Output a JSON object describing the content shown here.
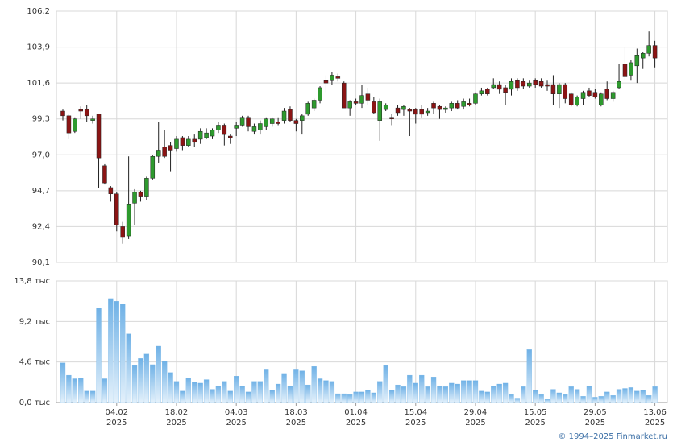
{
  "chart_data": {
    "type": "candlestick",
    "categories": [
      null,
      null,
      null,
      null,
      null,
      null,
      null,
      null,
      null,
      [
        "04.02",
        "2025"
      ],
      null,
      null,
      null,
      null,
      null,
      null,
      null,
      null,
      null,
      [
        "18.02",
        "2025"
      ],
      null,
      null,
      null,
      null,
      null,
      null,
      null,
      null,
      null,
      [
        "04.03",
        "2025"
      ],
      null,
      null,
      null,
      null,
      null,
      null,
      null,
      null,
      null,
      [
        "18.03",
        "2025"
      ],
      null,
      null,
      null,
      null,
      null,
      null,
      null,
      null,
      null,
      [
        "01.04",
        "2025"
      ],
      null,
      null,
      null,
      null,
      null,
      null,
      null,
      null,
      null,
      [
        "15.04",
        "2025"
      ],
      null,
      null,
      null,
      null,
      null,
      null,
      null,
      null,
      null,
      [
        "29.04",
        "2025"
      ],
      null,
      null,
      null,
      null,
      null,
      null,
      null,
      null,
      null,
      [
        "15.05",
        "2025"
      ],
      null,
      null,
      null,
      null,
      null,
      null,
      null,
      null,
      null,
      [
        "29.05",
        "2025"
      ],
      null,
      null,
      null,
      null,
      null,
      null,
      null,
      null,
      null,
      [
        "13.06",
        "2025"
      ]
    ],
    "open": [
      99.8,
      99.5,
      98.5,
      99.9,
      99.9,
      99.2,
      99.6,
      96.3,
      94.9,
      94.5,
      92.4,
      91.8,
      93.9,
      94.6,
      94.3,
      95.5,
      96.9,
      97.5,
      97.6,
      97.4,
      98.1,
      97.6,
      98.0,
      98.0,
      98.1,
      98.2,
      98.6,
      98.9,
      98.2,
      98.7,
      98.9,
      99.4,
      98.5,
      98.6,
      98.8,
      99.0,
      99.1,
      99.2,
      99.9,
      99.2,
      99.2,
      99.6,
      100.0,
      100.5,
      101.8,
      101.8,
      102.0,
      101.6,
      100.0,
      100.4,
      100.3,
      100.9,
      100.4,
      99.2,
      99.9,
      99.4,
      100.0,
      99.9,
      99.9,
      99.9,
      99.9,
      99.7,
      100.3,
      100.1,
      99.9,
      100.0,
      100.3,
      100.1,
      100.3,
      100.3,
      100.9,
      101.2,
      101.3,
      101.5,
      101.3,
      101.2,
      101.8,
      101.7,
      101.4,
      101.8,
      101.7,
      101.5,
      101.5,
      100.9,
      101.5,
      100.9,
      100.2,
      100.6,
      101.1,
      101.0,
      100.2,
      101.2,
      100.6,
      101.3,
      102.8,
      102.1,
      102.7,
      103.2,
      103.5,
      104.0
    ],
    "high": [
      99.9,
      99.6,
      99.4,
      100.1,
      100.2,
      99.5,
      99.6,
      96.4,
      95.0,
      94.6,
      92.7,
      96.9,
      94.8,
      94.7,
      95.6,
      97.0,
      99.1,
      98.6,
      97.8,
      98.2,
      98.2,
      98.2,
      98.3,
      98.7,
      98.7,
      98.7,
      99.1,
      99.0,
      98.3,
      99.1,
      99.5,
      99.5,
      99.0,
      99.2,
      99.4,
      99.4,
      99.4,
      100.0,
      100.1,
      99.3,
      99.6,
      100.4,
      100.6,
      101.4,
      102.1,
      102.3,
      102.2,
      101.7,
      100.5,
      100.6,
      101.5,
      101.3,
      100.7,
      100.6,
      100.3,
      99.6,
      100.2,
      100.2,
      100.0,
      100.0,
      100.2,
      100.0,
      100.4,
      100.2,
      100.1,
      100.4,
      100.5,
      100.6,
      100.6,
      101.0,
      101.3,
      101.3,
      101.9,
      101.7,
      101.5,
      101.9,
      101.9,
      101.9,
      101.8,
      101.9,
      101.9,
      101.8,
      102.1,
      101.6,
      101.6,
      101.0,
      100.8,
      101.1,
      101.3,
      101.2,
      101.0,
      101.7,
      101.1,
      102.8,
      103.9,
      103.1,
      103.8,
      103.6,
      104.9,
      104.3
    ],
    "low": [
      99.2,
      98.0,
      98.4,
      99.3,
      99.1,
      99.0,
      94.9,
      95.1,
      94.0,
      92.1,
      91.3,
      91.6,
      92.5,
      94.0,
      94.1,
      95.4,
      96.5,
      96.8,
      95.9,
      97.2,
      97.3,
      97.5,
      97.5,
      97.7,
      98.0,
      98.0,
      98.4,
      97.6,
      97.7,
      98.2,
      98.8,
      98.5,
      98.3,
      98.3,
      98.6,
      98.8,
      98.9,
      99.0,
      99.1,
      98.5,
      98.3,
      99.5,
      99.8,
      100.3,
      101.0,
      101.5,
      101.7,
      100.0,
      99.5,
      100.2,
      100.0,
      100.2,
      99.6,
      97.9,
      99.8,
      98.9,
      99.5,
      99.5,
      98.2,
      99.0,
      99.4,
      99.5,
      99.6,
      99.3,
      99.7,
      99.8,
      99.9,
      99.9,
      100.1,
      100.2,
      100.8,
      100.8,
      101.2,
      100.9,
      100.2,
      100.8,
      101.1,
      101.2,
      101.3,
      101.3,
      101.3,
      101.1,
      100.2,
      100.0,
      100.3,
      100.1,
      100.1,
      100.2,
      100.7,
      100.6,
      100.1,
      100.5,
      100.4,
      101.2,
      101.8,
      101.8,
      101.6,
      102.5,
      103.3,
      102.6
    ],
    "close": [
      99.5,
      98.4,
      99.3,
      99.8,
      99.5,
      99.3,
      96.8,
      95.2,
      94.5,
      92.5,
      91.7,
      93.8,
      94.6,
      94.3,
      95.5,
      96.9,
      97.3,
      96.9,
      97.3,
      98.0,
      97.6,
      98.0,
      97.8,
      98.5,
      98.4,
      98.6,
      98.9,
      98.3,
      98.1,
      98.9,
      99.4,
      98.8,
      98.8,
      99.0,
      99.3,
      99.3,
      99.0,
      99.8,
      99.2,
      99.0,
      99.5,
      100.3,
      100.5,
      101.3,
      101.6,
      102.1,
      101.9,
      100.0,
      100.4,
      100.3,
      100.8,
      100.5,
      99.7,
      100.4,
      100.2,
      99.3,
      99.7,
      100.1,
      99.8,
      99.6,
      99.6,
      99.8,
      100.0,
      99.9,
      100.0,
      100.3,
      100.0,
      100.4,
      100.2,
      100.9,
      101.1,
      100.9,
      101.5,
      101.2,
      101.0,
      101.7,
      101.3,
      101.4,
      101.6,
      101.5,
      101.4,
      101.4,
      100.9,
      101.5,
      100.6,
      100.2,
      100.7,
      101.0,
      100.8,
      100.7,
      100.9,
      100.6,
      101.0,
      101.7,
      102.0,
      102.9,
      103.4,
      103.5,
      104.0,
      103.2
    ],
    "volume": [
      4.5,
      3.1,
      2.7,
      2.8,
      1.3,
      1.3,
      10.7,
      2.7,
      11.8,
      11.5,
      11.2,
      7.8,
      4.2,
      5.0,
      5.5,
      4.3,
      6.4,
      4.7,
      3.4,
      2.4,
      1.3,
      2.8,
      2.3,
      2.2,
      2.6,
      1.5,
      1.9,
      2.4,
      1.3,
      3.0,
      1.9,
      1.2,
      2.4,
      2.4,
      3.8,
      1.4,
      2.1,
      3.3,
      1.9,
      3.8,
      3.6,
      2.0,
      4.1,
      2.7,
      2.5,
      2.4,
      1.0,
      1.0,
      0.9,
      1.2,
      1.2,
      1.4,
      1.1,
      2.4,
      4.2,
      1.4,
      2.0,
      1.8,
      3.1,
      2.2,
      3.1,
      1.8,
      2.9,
      1.9,
      1.8,
      2.2,
      2.1,
      2.5,
      2.5,
      2.5,
      1.3,
      1.2,
      1.9,
      2.1,
      2.2,
      0.9,
      0.5,
      1.8,
      6.0,
      1.4,
      0.9,
      0.4,
      1.5,
      1.1,
      0.9,
      1.8,
      1.5,
      0.7,
      1.9,
      0.6,
      0.7,
      1.2,
      0.8,
      1.5,
      1.6,
      1.7,
      1.3,
      1.4,
      0.8,
      1.8
    ],
    "up_color": "#2e9a2e",
    "down_color": "#8b1414",
    "volume_color": "#7ab8e8",
    "ylim": [
      90.1,
      106.2
    ],
    "yticks": [
      {
        "value": 90.1,
        "label": "90,1"
      },
      {
        "value": 92.4,
        "label": "92,4"
      },
      {
        "value": 94.7,
        "label": "94,7"
      },
      {
        "value": 97.0,
        "label": "97,0"
      },
      {
        "value": 99.3,
        "label": "99,3"
      },
      {
        "value": 101.6,
        "label": "101,6"
      },
      {
        "value": 103.9,
        "label": "103,9"
      },
      {
        "value": 106.2,
        "label": "106,2"
      }
    ],
    "volume_ylim": [
      0,
      13.8
    ],
    "volume_yticks": [
      {
        "value": 0,
        "label": "0,0 тыс"
      },
      {
        "value": 4.6,
        "label": "4,6 тыс"
      },
      {
        "value": 9.2,
        "label": "9,2 тыс"
      },
      {
        "value": 13.8,
        "label": "13,8 тыс"
      }
    ],
    "grid": true,
    "footer": "© 1994–2025 Finmarket.ru"
  }
}
